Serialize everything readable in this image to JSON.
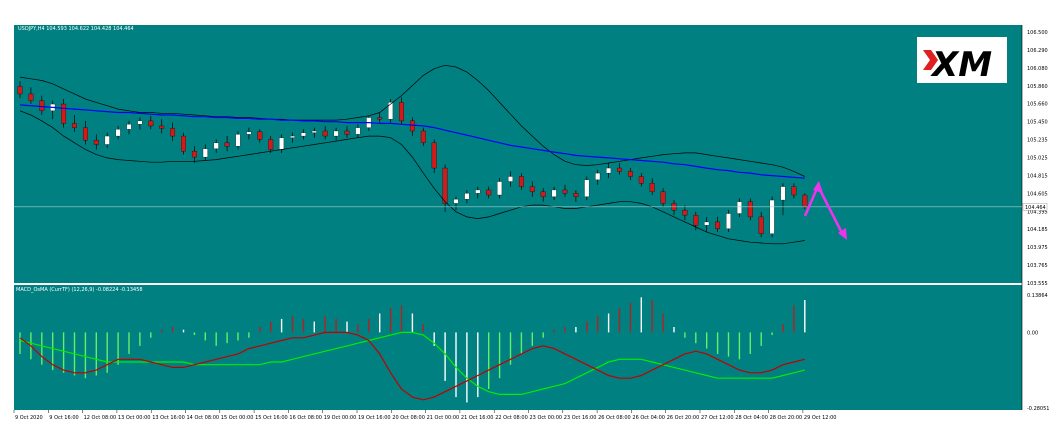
{
  "colors": {
    "background": "#008080",
    "bull": "#ffffff",
    "bear": "#d11a1a",
    "ma": "#0000ff",
    "band": "#000000",
    "signal_arrow": "#ee33ee",
    "macd_line": "#00ee00",
    "signal_line": "#c00000",
    "hist_neg": "#66ee66",
    "hist_pos": "#ffffff",
    "hist_red": "#b22222"
  },
  "header": {
    "title": "USDJPY,H4  104.593 104.622 104.428 104.464",
    "indicator": "MACD_OsMA (CurrTF) (12,26,9) -0.08224 -0.13458"
  },
  "logo": {
    "text": "XM"
  },
  "price_axis": {
    "labels": [
      "106.500",
      "106.290",
      "106.080",
      "105.860",
      "105.660",
      "105.450",
      "105.235",
      "105.025",
      "104.815",
      "104.605",
      "104.395",
      "104.185",
      "103.975",
      "103.765",
      "103.555"
    ],
    "current": "104.464"
  },
  "macd_axis": {
    "labels": [
      "0.13864",
      "0.00",
      "-0.28051"
    ]
  },
  "time_axis": {
    "labels": [
      "9 Oct 2020",
      "9 Oct 16:00",
      "12 Oct 08:00",
      "13 Oct 00:00",
      "13 Oct 16:00",
      "14 Oct 08:00",
      "15 Oct 00:00",
      "15 Oct 16:00",
      "16 Oct 08:00",
      "19 Oct 00:00",
      "19 Oct 16:00",
      "20 Oct 08:00",
      "21 Oct 00:00",
      "21 Oct 16:00",
      "22 Oct 08:00",
      "23 Oct 00:00",
      "23 Oct 16:00",
      "26 Oct 08:00",
      "26 Oct 04:00",
      "26 Oct 20:00",
      "27 Oct 12:00",
      "28 Oct 04:00",
      "28 Oct 20:00",
      "29 Oct 12:00"
    ]
  },
  "chart_data": {
    "type": "candlestick",
    "symbol": "USDJPY",
    "timeframe": "H4",
    "ylim": [
      103.555,
      106.5
    ],
    "candles": [
      [
        105.89,
        105.95,
        105.75,
        105.8
      ],
      [
        105.8,
        105.88,
        105.68,
        105.72
      ],
      [
        105.72,
        105.78,
        105.55,
        105.6
      ],
      [
        105.6,
        105.72,
        105.5,
        105.68
      ],
      [
        105.68,
        105.74,
        105.4,
        105.45
      ],
      [
        105.45,
        105.55,
        105.35,
        105.4
      ],
      [
        105.4,
        105.48,
        105.2,
        105.25
      ],
      [
        105.25,
        105.32,
        105.14,
        105.2
      ],
      [
        105.2,
        105.34,
        105.16,
        105.3
      ],
      [
        105.3,
        105.42,
        105.26,
        105.38
      ],
      [
        105.38,
        105.48,
        105.32,
        105.44
      ],
      [
        105.44,
        105.52,
        105.38,
        105.48
      ],
      [
        105.48,
        105.54,
        105.38,
        105.42
      ],
      [
        105.42,
        105.5,
        105.33,
        105.39
      ],
      [
        105.39,
        105.46,
        105.24,
        105.3
      ],
      [
        105.3,
        105.34,
        105.08,
        105.12
      ],
      [
        105.12,
        105.18,
        104.98,
        105.05
      ],
      [
        105.05,
        105.2,
        105.01,
        105.15
      ],
      [
        105.15,
        105.26,
        105.1,
        105.22
      ],
      [
        105.22,
        105.3,
        105.12,
        105.18
      ],
      [
        105.18,
        105.36,
        105.14,
        105.32
      ],
      [
        105.32,
        105.4,
        105.26,
        105.35
      ],
      [
        105.35,
        105.38,
        105.22,
        105.26
      ],
      [
        105.26,
        105.3,
        105.1,
        105.14
      ],
      [
        105.14,
        105.32,
        105.1,
        105.28
      ],
      [
        105.28,
        105.34,
        105.22,
        105.3
      ],
      [
        105.3,
        105.38,
        105.26,
        105.34
      ],
      [
        105.34,
        105.4,
        105.28,
        105.36
      ],
      [
        105.36,
        105.42,
        105.26,
        105.3
      ],
      [
        105.3,
        105.4,
        105.25,
        105.36
      ],
      [
        105.36,
        105.42,
        105.28,
        105.32
      ],
      [
        105.32,
        105.44,
        105.28,
        105.4
      ],
      [
        105.4,
        105.54,
        105.36,
        105.52
      ],
      [
        105.52,
        105.58,
        105.46,
        105.5
      ],
      [
        105.5,
        105.74,
        105.46,
        105.7
      ],
      [
        105.7,
        105.76,
        105.44,
        105.48
      ],
      [
        105.48,
        105.52,
        105.3,
        105.36
      ],
      [
        105.36,
        105.4,
        105.18,
        105.22
      ],
      [
        105.22,
        105.26,
        104.86,
        104.92
      ],
      [
        104.92,
        104.96,
        104.4,
        104.5
      ],
      [
        104.5,
        104.58,
        104.42,
        104.55
      ],
      [
        104.55,
        104.66,
        104.5,
        104.62
      ],
      [
        104.62,
        104.7,
        104.56,
        104.66
      ],
      [
        104.66,
        104.7,
        104.56,
        104.6
      ],
      [
        104.6,
        104.8,
        104.56,
        104.76
      ],
      [
        104.76,
        104.88,
        104.7,
        104.82
      ],
      [
        104.82,
        104.86,
        104.66,
        104.7
      ],
      [
        104.7,
        104.76,
        104.58,
        104.64
      ],
      [
        104.64,
        104.68,
        104.52,
        104.58
      ],
      [
        104.58,
        104.7,
        104.54,
        104.66
      ],
      [
        104.66,
        104.72,
        104.58,
        104.62
      ],
      [
        104.62,
        104.66,
        104.52,
        104.58
      ],
      [
        104.58,
        104.82,
        104.54,
        104.78
      ],
      [
        104.78,
        104.9,
        104.72,
        104.86
      ],
      [
        104.86,
        104.98,
        104.8,
        104.92
      ],
      [
        104.92,
        104.98,
        104.84,
        104.88
      ],
      [
        104.88,
        104.92,
        104.78,
        104.82
      ],
      [
        104.82,
        104.86,
        104.7,
        104.74
      ],
      [
        104.74,
        104.8,
        104.6,
        104.64
      ],
      [
        104.64,
        104.68,
        104.46,
        104.5
      ],
      [
        104.5,
        104.54,
        104.36,
        104.42
      ],
      [
        104.42,
        104.48,
        104.3,
        104.36
      ],
      [
        104.36,
        104.4,
        104.18,
        104.24
      ],
      [
        104.24,
        104.34,
        104.16,
        104.28
      ],
      [
        104.28,
        104.34,
        104.16,
        104.2
      ],
      [
        104.2,
        104.42,
        104.16,
        104.38
      ],
      [
        104.38,
        104.56,
        104.34,
        104.52
      ],
      [
        104.52,
        104.56,
        104.3,
        104.34
      ],
      [
        104.34,
        104.4,
        104.1,
        104.14
      ],
      [
        104.14,
        104.58,
        104.1,
        104.54
      ],
      [
        104.54,
        104.74,
        104.36,
        104.7
      ],
      [
        104.7,
        104.74,
        104.56,
        104.6
      ],
      [
        104.6,
        104.62,
        104.43,
        104.46
      ]
    ],
    "ma": [
      105.67,
      105.66,
      105.65,
      105.64,
      105.63,
      105.62,
      105.61,
      105.6,
      105.59,
      105.58,
      105.58,
      105.57,
      105.56,
      105.55,
      105.55,
      105.54,
      105.53,
      105.53,
      105.52,
      105.52,
      105.51,
      105.51,
      105.5,
      105.5,
      105.49,
      105.49,
      105.48,
      105.48,
      105.47,
      105.47,
      105.46,
      105.46,
      105.46,
      105.45,
      105.45,
      105.44,
      105.43,
      105.42,
      105.4,
      105.37,
      105.34,
      105.31,
      105.28,
      105.25,
      105.22,
      105.19,
      105.17,
      105.15,
      105.13,
      105.11,
      105.09,
      105.07,
      105.06,
      105.05,
      105.04,
      105.03,
      105.02,
      105.01,
      105.0,
      104.99,
      104.97,
      104.96,
      104.94,
      104.92,
      104.9,
      104.89,
      104.87,
      104.86,
      104.84,
      104.83,
      104.82,
      104.81,
      104.8
    ],
    "bb_upper": [
      106.0,
      105.98,
      105.96,
      105.92,
      105.86,
      105.8,
      105.74,
      105.7,
      105.66,
      105.62,
      105.6,
      105.58,
      105.58,
      105.57,
      105.57,
      105.56,
      105.55,
      105.54,
      105.53,
      105.53,
      105.52,
      105.52,
      105.51,
      105.5,
      105.5,
      105.49,
      105.49,
      105.49,
      105.49,
      105.49,
      105.5,
      105.52,
      105.54,
      105.58,
      105.68,
      105.78,
      105.9,
      106.02,
      106.1,
      106.14,
      106.12,
      106.06,
      105.96,
      105.84,
      105.7,
      105.56,
      105.42,
      105.3,
      105.18,
      105.08,
      105.0,
      104.96,
      104.95,
      104.96,
      104.98,
      105.0,
      105.02,
      105.04,
      105.06,
      105.08,
      105.09,
      105.1,
      105.1,
      105.08,
      105.06,
      105.04,
      105.02,
      105.0,
      104.98,
      104.96,
      104.93,
      104.88,
      104.82
    ],
    "bb_lower": [
      105.6,
      105.55,
      105.48,
      105.4,
      105.3,
      105.22,
      105.14,
      105.08,
      105.04,
      105.02,
      105.01,
      105.0,
      104.99,
      104.99,
      105.0,
      105.0,
      105.0,
      105.01,
      105.02,
      105.04,
      105.06,
      105.08,
      105.1,
      105.12,
      105.14,
      105.16,
      105.18,
      105.2,
      105.22,
      105.24,
      105.26,
      105.28,
      105.3,
      105.3,
      105.28,
      105.2,
      105.05,
      104.86,
      104.68,
      104.52,
      104.4,
      104.34,
      104.32,
      104.34,
      104.38,
      104.42,
      104.46,
      104.48,
      104.48,
      104.46,
      104.44,
      104.44,
      104.46,
      104.48,
      104.5,
      104.52,
      104.52,
      104.5,
      104.46,
      104.4,
      104.34,
      104.28,
      104.22,
      104.16,
      104.12,
      104.08,
      104.06,
      104.04,
      104.03,
      104.02,
      104.02,
      104.04,
      104.06
    ],
    "macd": {
      "ylim": [
        -0.28051,
        0.13864
      ],
      "histogram": [
        -0.08,
        -0.1,
        -0.12,
        -0.14,
        -0.15,
        -0.16,
        -0.17,
        -0.16,
        -0.15,
        -0.12,
        -0.08,
        -0.05,
        -0.02,
        0.01,
        0.02,
        0.01,
        -0.01,
        -0.03,
        -0.05,
        -0.04,
        -0.03,
        -0.02,
        0.02,
        0.04,
        0.05,
        0.06,
        0.05,
        0.04,
        0.06,
        0.05,
        0.04,
        0.03,
        0.05,
        0.07,
        0.09,
        0.1,
        0.07,
        0.03,
        -0.05,
        -0.18,
        -0.24,
        -0.26,
        -0.24,
        -0.21,
        -0.17,
        -0.12,
        -0.08,
        -0.05,
        -0.02,
        0.01,
        0.02,
        0.02,
        0.04,
        0.06,
        0.07,
        0.09,
        0.11,
        0.13,
        0.12,
        0.07,
        0.02,
        -0.02,
        -0.04,
        -0.06,
        -0.08,
        -0.09,
        -0.1,
        -0.08,
        -0.05,
        -0.01,
        0.03,
        0.1,
        0.12
      ],
      "line_green": [
        -0.03,
        -0.04,
        -0.05,
        -0.06,
        -0.07,
        -0.08,
        -0.09,
        -0.1,
        -0.11,
        -0.11,
        -0.11,
        -0.11,
        -0.11,
        -0.11,
        -0.11,
        -0.11,
        -0.12,
        -0.12,
        -0.12,
        -0.12,
        -0.12,
        -0.12,
        -0.12,
        -0.11,
        -0.11,
        -0.1,
        -0.09,
        -0.08,
        -0.07,
        -0.06,
        -0.05,
        -0.04,
        -0.03,
        -0.02,
        -0.01,
        0.0,
        0.0,
        -0.01,
        -0.04,
        -0.08,
        -0.13,
        -0.17,
        -0.2,
        -0.22,
        -0.23,
        -0.23,
        -0.23,
        -0.22,
        -0.21,
        -0.2,
        -0.19,
        -0.17,
        -0.15,
        -0.13,
        -0.11,
        -0.1,
        -0.1,
        -0.1,
        -0.11,
        -0.12,
        -0.13,
        -0.14,
        -0.15,
        -0.16,
        -0.17,
        -0.17,
        -0.17,
        -0.17,
        -0.17,
        -0.17,
        -0.16,
        -0.15,
        -0.14
      ],
      "line_red": [
        -0.02,
        -0.05,
        -0.09,
        -0.12,
        -0.14,
        -0.15,
        -0.15,
        -0.14,
        -0.12,
        -0.1,
        -0.1,
        -0.1,
        -0.11,
        -0.12,
        -0.13,
        -0.13,
        -0.12,
        -0.11,
        -0.1,
        -0.09,
        -0.08,
        -0.06,
        -0.05,
        -0.04,
        -0.03,
        -0.02,
        -0.02,
        -0.01,
        0.0,
        0.0,
        0.0,
        -0.01,
        -0.03,
        -0.08,
        -0.15,
        -0.21,
        -0.24,
        -0.25,
        -0.24,
        -0.22,
        -0.2,
        -0.18,
        -0.16,
        -0.14,
        -0.12,
        -0.1,
        -0.08,
        -0.06,
        -0.05,
        -0.06,
        -0.08,
        -0.1,
        -0.12,
        -0.14,
        -0.16,
        -0.17,
        -0.17,
        -0.16,
        -0.14,
        -0.12,
        -0.1,
        -0.08,
        -0.07,
        -0.08,
        -0.1,
        -0.12,
        -0.14,
        -0.15,
        -0.15,
        -0.14,
        -0.12,
        -0.11,
        -0.1
      ]
    }
  }
}
